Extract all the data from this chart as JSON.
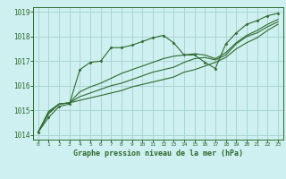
{
  "background_color": "#cff0f0",
  "grid_color": "#aad4d4",
  "line_color": "#2d6a2d",
  "xlabel": "Graphe pression niveau de la mer (hPa)",
  "xlim": [
    -0.5,
    23.5
  ],
  "ylim": [
    1013.8,
    1019.2
  ],
  "yticks": [
    1014,
    1015,
    1016,
    1017,
    1018,
    1019
  ],
  "xticks": [
    0,
    1,
    2,
    3,
    4,
    5,
    6,
    7,
    8,
    9,
    10,
    11,
    12,
    13,
    14,
    15,
    16,
    17,
    18,
    19,
    20,
    21,
    22,
    23
  ],
  "series_with_markers": [
    1014.1,
    1014.7,
    1015.15,
    1015.25,
    1016.65,
    1016.95,
    1017.0,
    1017.55,
    1017.55,
    1017.65,
    1017.8,
    1017.95,
    1018.05,
    1017.75,
    1017.25,
    1017.25,
    1016.95,
    1016.7,
    1017.7,
    1018.15,
    1018.5,
    1018.65,
    1018.85,
    1018.95
  ],
  "series_smooth": [
    [
      1014.1,
      1014.85,
      1015.25,
      1015.3,
      1015.75,
      1015.95,
      1016.1,
      1016.3,
      1016.5,
      1016.65,
      1016.8,
      1016.95,
      1017.1,
      1017.2,
      1017.25,
      1017.3,
      1017.25,
      1017.1,
      1017.35,
      1017.75,
      1018.05,
      1018.25,
      1018.5,
      1018.7
    ],
    [
      1014.1,
      1014.9,
      1015.25,
      1015.3,
      1015.55,
      1015.7,
      1015.85,
      1016.0,
      1016.1,
      1016.25,
      1016.4,
      1016.55,
      1016.65,
      1016.75,
      1016.95,
      1017.1,
      1017.15,
      1017.05,
      1017.25,
      1017.7,
      1018.0,
      1018.15,
      1018.4,
      1018.6
    ],
    [
      1014.1,
      1014.95,
      1015.25,
      1015.3,
      1015.4,
      1015.5,
      1015.6,
      1015.7,
      1015.8,
      1015.95,
      1016.05,
      1016.15,
      1016.25,
      1016.35,
      1016.55,
      1016.65,
      1016.8,
      1016.95,
      1017.15,
      1017.5,
      1017.75,
      1017.95,
      1018.25,
      1018.5
    ]
  ]
}
